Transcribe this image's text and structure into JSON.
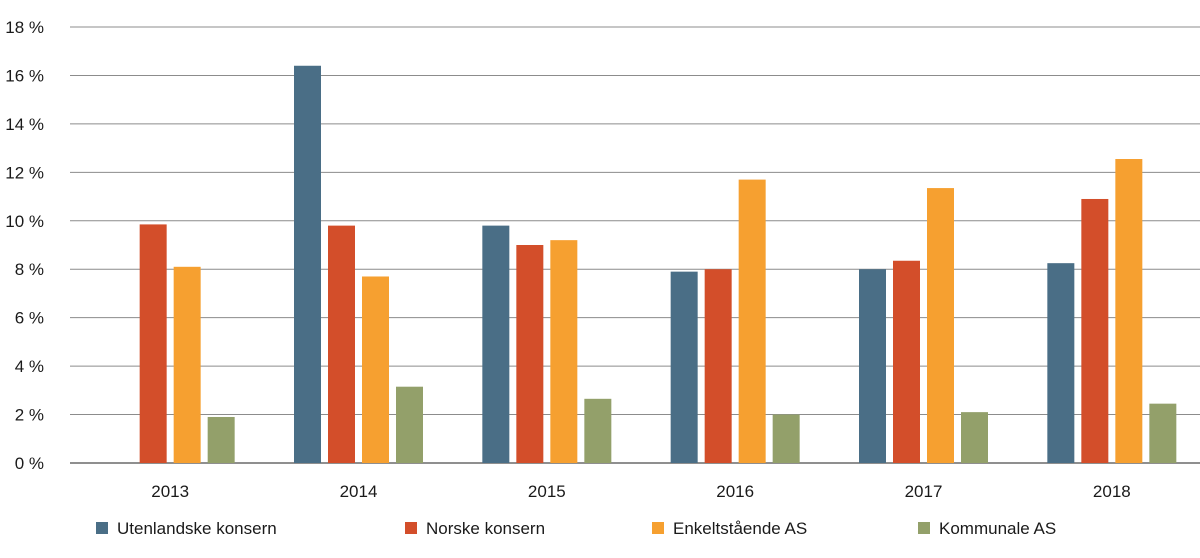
{
  "chart_data": {
    "type": "bar",
    "categories": [
      "2013",
      "2014",
      "2015",
      "2016",
      "2017",
      "2018"
    ],
    "series": [
      {
        "name": "Utenlandske konsern",
        "color": "#4a6e86",
        "values": [
          null,
          16.4,
          9.8,
          7.9,
          8.0,
          8.25
        ]
      },
      {
        "name": "Norske konsern",
        "color": "#d34e2a",
        "values": [
          9.85,
          9.8,
          9.0,
          8.0,
          8.35,
          10.9
        ]
      },
      {
        "name": "Enkeltstående AS",
        "color": "#f6a030",
        "values": [
          8.1,
          7.7,
          9.2,
          11.7,
          11.35,
          12.55
        ]
      },
      {
        "name": "Kommunale AS",
        "color": "#93a06a",
        "values": [
          1.9,
          3.15,
          2.65,
          2.0,
          2.1,
          2.45
        ]
      }
    ],
    "y_ticks": [
      "0 %",
      "2 %",
      "4 %",
      "6 %",
      "8 %",
      "10 %",
      "12 %",
      "14 %",
      "16 %",
      "18 %"
    ],
    "ylim": [
      0,
      18
    ],
    "grid": true,
    "legend_position": "bottom"
  }
}
